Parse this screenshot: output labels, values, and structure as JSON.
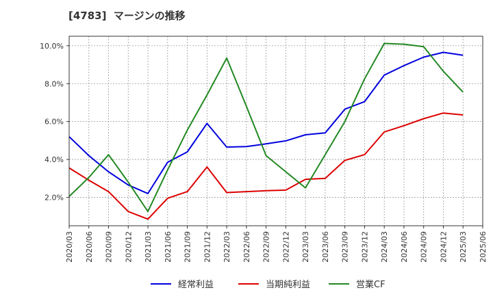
{
  "chart_data": {
    "type": "line",
    "title": "[4783]  マージンの推移",
    "xlabel": "",
    "ylabel": "",
    "ylim": [
      0.5,
      10.5
    ],
    "yticks": [
      "2.0%",
      "4.0%",
      "6.0%",
      "8.0%",
      "10.0%"
    ],
    "ytick_values": [
      2,
      4,
      6,
      8,
      10
    ],
    "grid": true,
    "legend_position": "bottom",
    "categories": [
      "2020/03",
      "2020/06",
      "2020/09",
      "2020/12",
      "2021/03",
      "2021/06",
      "2021/09",
      "2021/12",
      "2022/03",
      "2022/06",
      "2022/09",
      "2022/12",
      "2023/03",
      "2023/06",
      "2023/09",
      "2023/12",
      "2024/03",
      "2024/06",
      "2024/09",
      "2024/12",
      "2025/03",
      "2025/06"
    ],
    "series": [
      {
        "name": "経常利益",
        "color": "#0000dd",
        "values": [
          5.2,
          4.2,
          3.35,
          2.65,
          2.2,
          3.85,
          4.4,
          5.9,
          4.65,
          4.68,
          4.82,
          4.98,
          5.3,
          5.4,
          6.65,
          7.05,
          8.45,
          8.95,
          9.4,
          9.65,
          9.5,
          null
        ]
      },
      {
        "name": "当期純利益",
        "color": "#dd0000",
        "values": [
          3.55,
          2.9,
          2.3,
          1.25,
          0.85,
          1.95,
          2.3,
          3.6,
          2.25,
          2.3,
          2.35,
          2.38,
          2.95,
          3.0,
          3.95,
          4.25,
          5.45,
          5.78,
          6.15,
          6.45,
          6.35,
          null
        ]
      },
      {
        "name": "営業CF",
        "color": "#228822",
        "values": [
          2.05,
          3.05,
          4.25,
          2.8,
          1.25,
          3.45,
          5.55,
          7.4,
          9.35,
          6.8,
          4.2,
          3.35,
          2.5,
          4.25,
          6.0,
          8.25,
          10.12,
          10.08,
          9.95,
          8.65,
          7.55,
          null
        ]
      }
    ]
  }
}
